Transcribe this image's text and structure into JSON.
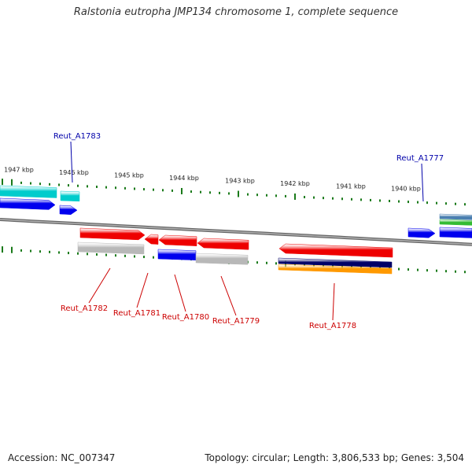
{
  "title": "Ralstonia eutropha JMP134 chromosome 1, complete sequence",
  "footer": {
    "accession": "Accession: NC_007347",
    "summary": "Topology: circular; Length: 3,806,533 bp; Genes: 3,504"
  },
  "colors": {
    "backbone": "#888888",
    "tick": "#1a7a1a",
    "forward_label": "#0000aa",
    "reverse_label": "#cc0000",
    "red_gene": "#ee0000",
    "blue_gene": "#0000ee",
    "cyan_gene": "#00cccc",
    "gray_gene": "#b8b8b8",
    "navy_gene": "#000066",
    "orange_gene": "#ff9900",
    "green_gene": "#33bb33",
    "steel_gene": "#4a7fb0"
  },
  "scale_labels": [
    "1947 kbp",
    "1946 kbp",
    "1945 kbp",
    "1944 kbp",
    "1943 kbp",
    "1942 kbp",
    "1941 kbp",
    "1940 kbp"
  ],
  "gene_labels": {
    "forward": [
      "Reut_A1783",
      "Reut_A1777"
    ],
    "reverse": [
      "Reut_A1782",
      "Reut_A1781",
      "Reut_A1780",
      "Reut_A1779",
      "Reut_A1778"
    ]
  }
}
